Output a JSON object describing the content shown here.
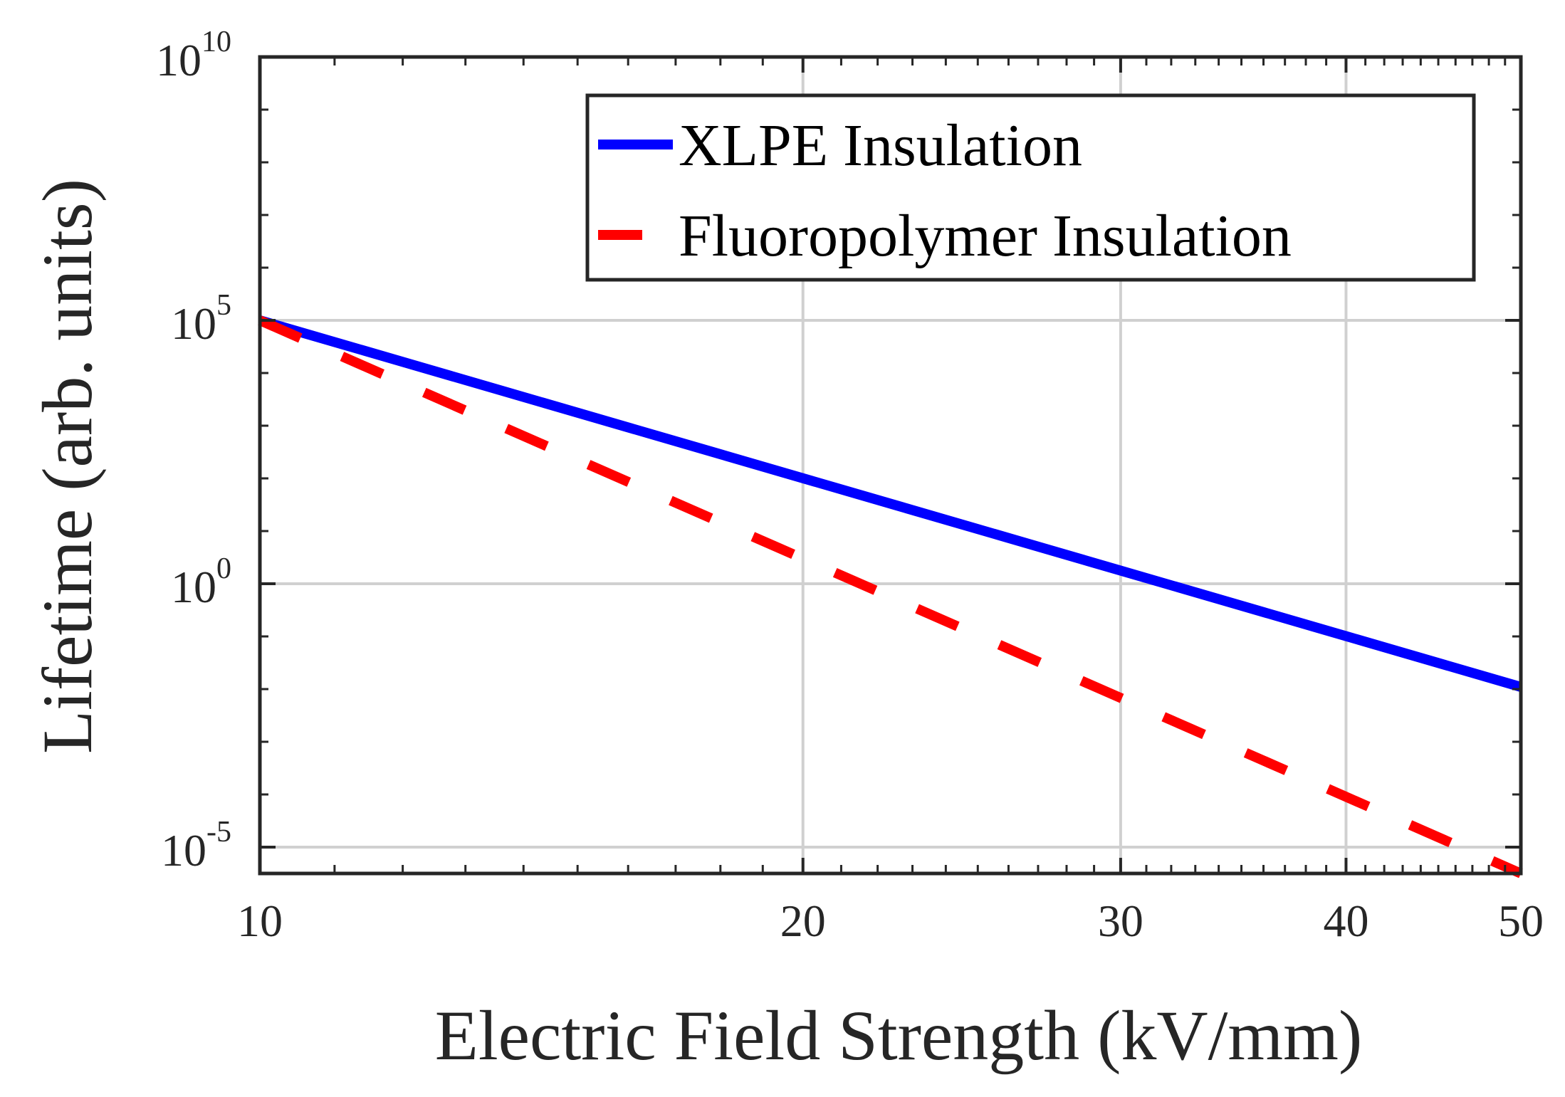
{
  "chart_data": {
    "type": "line",
    "x_scale": "log",
    "y_scale": "log",
    "xlabel": "Electric Field Strength (kV/mm)",
    "ylabel": "Lifetime (arb. units)",
    "xlim": [
      10,
      50
    ],
    "ylim_exponent": [
      -5.5,
      10
    ],
    "grid": true,
    "legend_position": "top-right",
    "x_ticks": [
      {
        "value": 10,
        "label": "10"
      },
      {
        "value": 20,
        "label": "20"
      },
      {
        "value": 30,
        "label": "30"
      },
      {
        "value": 40,
        "label": "40"
      },
      {
        "value": 50,
        "label": "50"
      }
    ],
    "y_ticks": [
      {
        "exponent": -5,
        "base": "10",
        "sup": "-5"
      },
      {
        "exponent": 0,
        "base": "10",
        "sup": "0"
      },
      {
        "exponent": 5,
        "base": "10",
        "sup": "5"
      },
      {
        "exponent": 10,
        "base": "10",
        "sup": "10"
      }
    ],
    "series": [
      {
        "name": "XLPE Insulation",
        "color": "#0000ff",
        "style": "solid",
        "x": [
          10,
          50
        ],
        "log10_y": [
          5.0,
          -1.96
        ]
      },
      {
        "name": "Fluoropolymer Insulation",
        "color": "#ff0000",
        "style": "dashed",
        "x": [
          10,
          50
        ],
        "log10_y": [
          5.0,
          -5.5
        ]
      }
    ]
  }
}
